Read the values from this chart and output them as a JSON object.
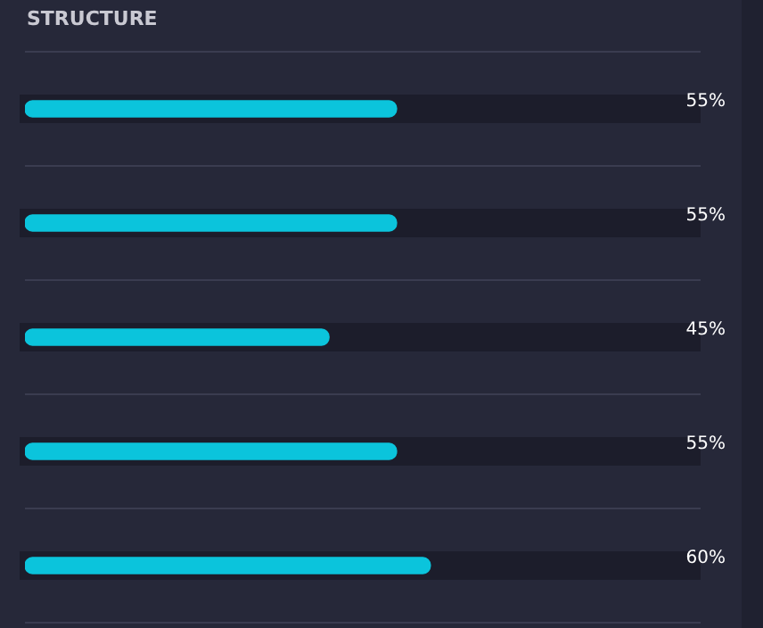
{
  "chart_data": {
    "type": "bar",
    "title": "STRUCTURE",
    "orientation": "horizontal",
    "categories": [
      null,
      null,
      null,
      null,
      null
    ],
    "values": [
      55,
      55,
      45,
      55,
      60
    ],
    "color": "#0bc4dc",
    "value_labels": [
      "55%",
      "55%",
      "45%",
      "55%",
      "60%"
    ],
    "xlim": [
      0,
      100
    ],
    "tick_labels": false,
    "grid": "y",
    "legend": false
  }
}
